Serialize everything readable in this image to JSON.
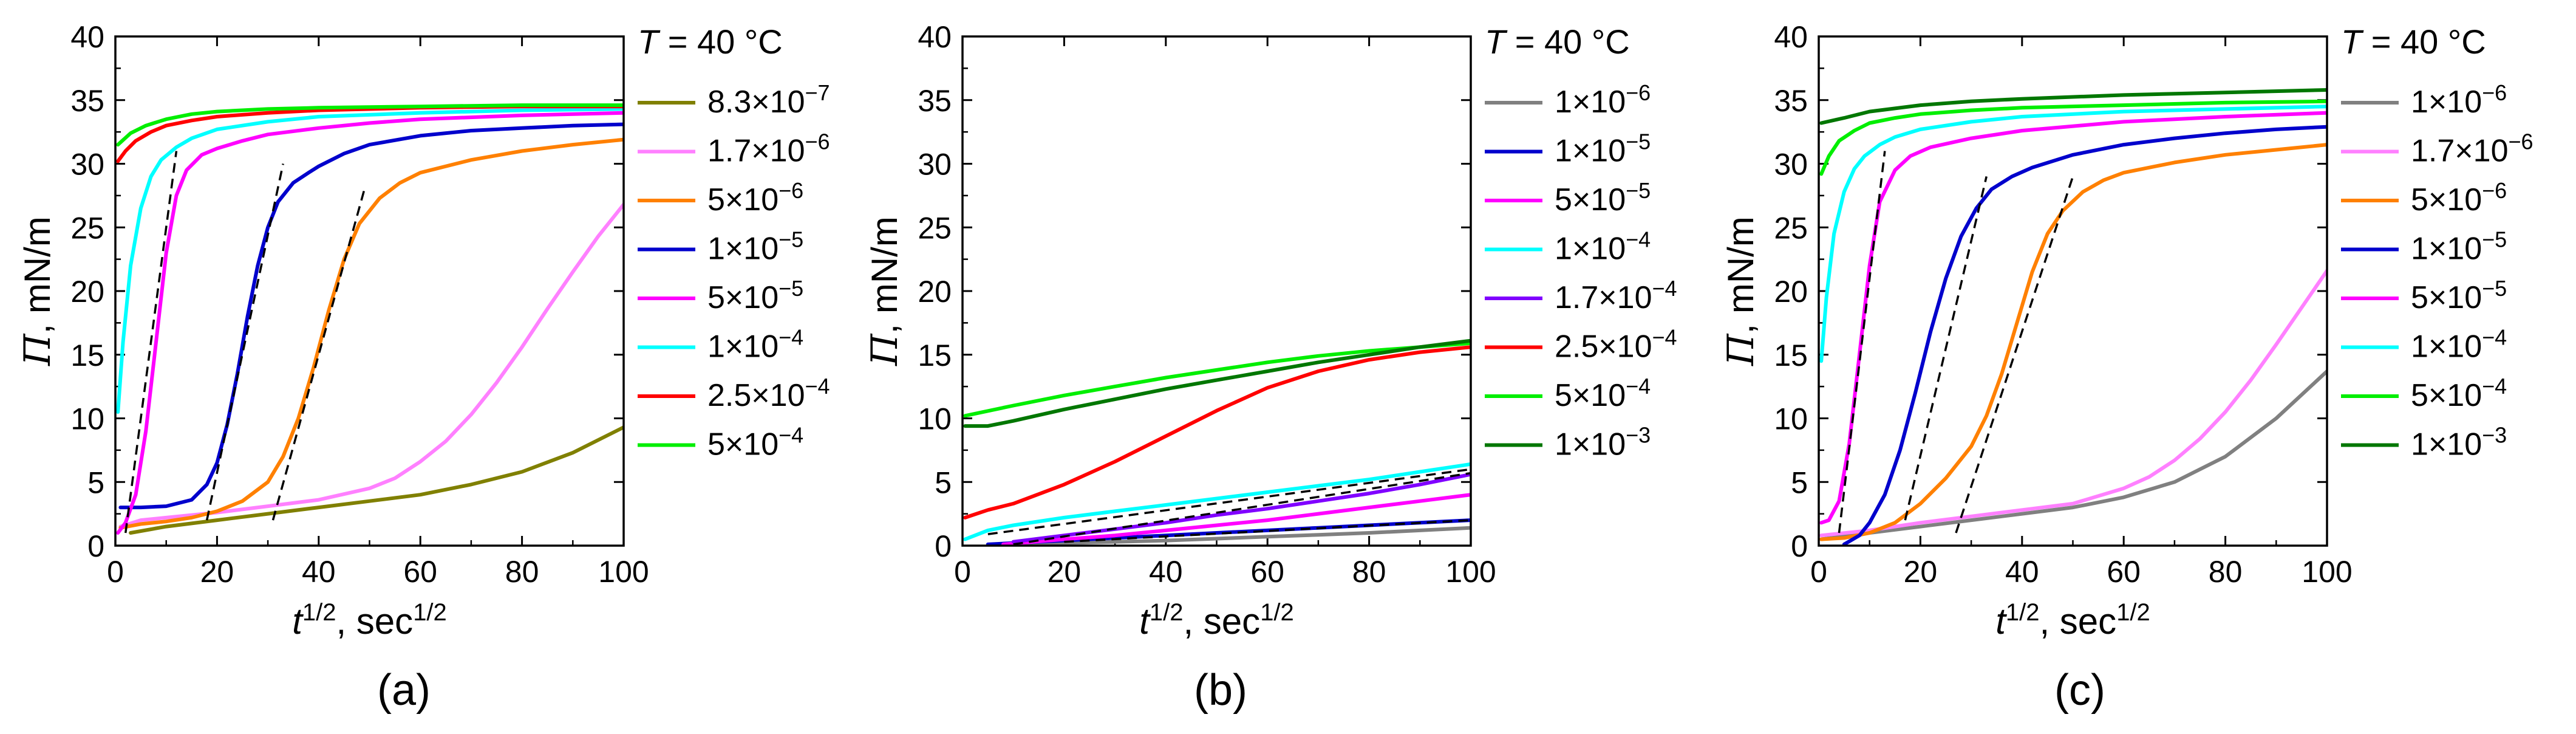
{
  "chart_data": [
    {
      "type": "line",
      "panel_label": "(a)",
      "title": "",
      "xlabel": {
        "var": "t",
        "exp": "1/2",
        "sep": ", ",
        "unit": "sec",
        "unit_exp": "1/2"
      },
      "ylabel": {
        "var": "Π",
        "unit": ", mN/m"
      },
      "xlim": [
        0,
        100
      ],
      "ylim": [
        0,
        40
      ],
      "xticks": [
        0,
        20,
        40,
        60,
        80,
        100
      ],
      "yticks": [
        0,
        5,
        10,
        15,
        20,
        25,
        30,
        35,
        40
      ],
      "legend_title": {
        "var": "T",
        "rest": " = 40 °C"
      },
      "series": [
        {
          "name": "8.3×10",
          "exp": "−7",
          "color": "#808000",
          "x": [
            3,
            10,
            20,
            30,
            40,
            50,
            60,
            70,
            80,
            90,
            100
          ],
          "y": [
            1.0,
            1.5,
            2.0,
            2.5,
            3.0,
            3.5,
            4.0,
            4.8,
            5.8,
            7.3,
            9.3
          ]
        },
        {
          "name": "1.7×10",
          "exp": "−6",
          "color": "#FF80FF",
          "x": [
            1,
            5,
            10,
            20,
            30,
            40,
            50,
            55,
            60,
            65,
            70,
            75,
            80,
            85,
            90,
            95,
            100
          ],
          "y": [
            1.5,
            2.0,
            2.2,
            2.6,
            3.1,
            3.6,
            4.5,
            5.3,
            6.6,
            8.2,
            10.3,
            12.8,
            15.6,
            18.6,
            21.5,
            24.3,
            26.8
          ]
        },
        {
          "name": "5×10",
          "exp": "−6",
          "color": "#FF8000",
          "x": [
            1,
            5,
            10,
            15,
            20,
            25,
            30,
            33,
            36,
            39,
            42,
            45,
            48,
            52,
            56,
            60,
            70,
            80,
            90,
            100
          ],
          "y": [
            1.4,
            1.7,
            1.9,
            2.2,
            2.7,
            3.5,
            5.0,
            7.0,
            10.0,
            14.0,
            18.5,
            22.5,
            25.3,
            27.3,
            28.5,
            29.3,
            30.3,
            31.0,
            31.5,
            31.9
          ]
        },
        {
          "name": "1×10",
          "exp": "−5",
          "color": "#0000CC",
          "x": [
            1,
            5,
            10,
            15,
            18,
            20,
            22,
            24,
            26,
            28,
            30,
            32,
            35,
            38,
            40,
            45,
            50,
            60,
            70,
            80,
            90,
            100
          ],
          "y": [
            3.0,
            3.0,
            3.1,
            3.6,
            4.8,
            6.5,
            9.5,
            13.5,
            18.0,
            22.0,
            25.0,
            27.0,
            28.5,
            29.3,
            29.8,
            30.8,
            31.5,
            32.2,
            32.6,
            32.8,
            33.0,
            33.1
          ]
        },
        {
          "name": "5×10",
          "exp": "−5",
          "color": "#FF00FF",
          "x": [
            0.5,
            2,
            4,
            6,
            8,
            10,
            12,
            14,
            17,
            20,
            25,
            30,
            40,
            50,
            60,
            80,
            100
          ],
          "y": [
            1.0,
            1.8,
            4.0,
            9.0,
            16.0,
            23.0,
            27.5,
            29.5,
            30.7,
            31.2,
            31.8,
            32.3,
            32.8,
            33.2,
            33.5,
            33.8,
            34.0
          ]
        },
        {
          "name": "1×10",
          "exp": "−4",
          "color": "#00FFFF",
          "x": [
            0.5,
            1.5,
            3,
            5,
            7,
            9,
            12,
            15,
            20,
            30,
            40,
            60,
            80,
            100
          ],
          "y": [
            10.5,
            16.0,
            22.0,
            26.5,
            29.0,
            30.3,
            31.3,
            32.0,
            32.7,
            33.3,
            33.7,
            34.0,
            34.2,
            34.3
          ]
        },
        {
          "name": "2.5×10",
          "exp": "−4",
          "color": "#FF0000",
          "x": [
            0.5,
            2,
            4,
            7,
            10,
            15,
            20,
            30,
            40,
            60,
            80,
            100
          ],
          "y": [
            30.2,
            31.0,
            31.8,
            32.5,
            33.0,
            33.4,
            33.7,
            34.0,
            34.2,
            34.4,
            34.5,
            34.5
          ]
        },
        {
          "name": "5×10",
          "exp": "−4",
          "color": "#00EE00",
          "x": [
            0.5,
            3,
            6,
            10,
            15,
            20,
            30,
            40,
            60,
            80,
            100
          ],
          "y": [
            31.5,
            32.4,
            33.0,
            33.5,
            33.9,
            34.1,
            34.3,
            34.4,
            34.5,
            34.6,
            34.6
          ]
        }
      ],
      "fits": [
        {
          "x": [
            2,
            12
          ],
          "y": [
            1,
            31
          ]
        },
        {
          "x": [
            18,
            33
          ],
          "y": [
            2,
            30
          ]
        },
        {
          "x": [
            31,
            49
          ],
          "y": [
            2,
            28
          ]
        }
      ]
    },
    {
      "type": "line",
      "panel_label": "(b)",
      "title": "",
      "xlabel": {
        "var": "t",
        "exp": "1/2",
        "sep": ", ",
        "unit": "sec",
        "unit_exp": "1/2"
      },
      "ylabel": {
        "var": "Π",
        "unit": ", mN/m"
      },
      "xlim": [
        0,
        100
      ],
      "ylim": [
        0,
        40
      ],
      "xticks": [
        0,
        20,
        40,
        60,
        80,
        100
      ],
      "yticks": [
        0,
        5,
        10,
        15,
        20,
        25,
        30,
        35,
        40
      ],
      "legend_title": {
        "var": "T",
        "rest": " = 40 °C"
      },
      "series": [
        {
          "name": "1×10",
          "exp": "−6",
          "color": "#808080",
          "x": [
            10,
            20,
            30,
            40,
            50,
            60,
            70,
            80,
            90,
            100
          ],
          "y": [
            0.1,
            0.2,
            0.3,
            0.4,
            0.55,
            0.7,
            0.85,
            1.0,
            1.2,
            1.4
          ]
        },
        {
          "name": "1×10",
          "exp": "−5",
          "color": "#0000CC",
          "x": [
            5,
            10,
            20,
            30,
            40,
            50,
            60,
            70,
            80,
            90,
            100
          ],
          "y": [
            0.1,
            0.2,
            0.4,
            0.6,
            0.8,
            1.0,
            1.2,
            1.4,
            1.6,
            1.8,
            2.0
          ]
        },
        {
          "name": "5×10",
          "exp": "−5",
          "color": "#FF00FF",
          "x": [
            8,
            20,
            30,
            40,
            50,
            60,
            70,
            80,
            90,
            100
          ],
          "y": [
            0.1,
            0.5,
            0.8,
            1.2,
            1.6,
            2.0,
            2.5,
            3.0,
            3.5,
            4.0
          ]
        },
        {
          "name": "1×10",
          "exp": "−4",
          "color": "#00FFFF",
          "x": [
            0.5,
            5,
            10,
            20,
            30,
            40,
            50,
            60,
            70,
            80,
            90,
            100
          ],
          "y": [
            0.5,
            1.2,
            1.6,
            2.2,
            2.7,
            3.2,
            3.7,
            4.2,
            4.7,
            5.2,
            5.8,
            6.4
          ]
        },
        {
          "name": "1.7×10",
          "exp": "−4",
          "color": "#8000FF",
          "x": [
            10,
            20,
            30,
            40,
            50,
            60,
            70,
            80,
            90,
            100
          ],
          "y": [
            0.3,
            0.8,
            1.3,
            1.8,
            2.4,
            2.9,
            3.5,
            4.1,
            4.8,
            5.6
          ]
        },
        {
          "name": "2.5×10",
          "exp": "−4",
          "color": "#FF0000",
          "x": [
            0.5,
            5,
            10,
            20,
            30,
            40,
            50,
            60,
            70,
            80,
            90,
            100
          ],
          "y": [
            2.2,
            2.8,
            3.3,
            4.8,
            6.6,
            8.6,
            10.6,
            12.4,
            13.7,
            14.6,
            15.2,
            15.6
          ]
        },
        {
          "name": "5×10",
          "exp": "−4",
          "color": "#00EE00",
          "x": [
            0.5,
            10,
            20,
            30,
            40,
            50,
            60,
            70,
            80,
            90,
            100
          ],
          "y": [
            10.2,
            11.0,
            11.8,
            12.5,
            13.2,
            13.8,
            14.4,
            14.9,
            15.3,
            15.6,
            15.9
          ]
        },
        {
          "name": "1×10",
          "exp": "−3",
          "color": "#007700",
          "x": [
            0.5,
            5,
            10,
            20,
            30,
            40,
            50,
            60,
            70,
            80,
            90,
            100
          ],
          "y": [
            9.4,
            9.4,
            9.8,
            10.7,
            11.5,
            12.3,
            13.0,
            13.7,
            14.4,
            15.0,
            15.6,
            16.1
          ]
        }
      ],
      "fits": [
        {
          "x": [
            5,
            100
          ],
          "y": [
            0.9,
            6.0
          ]
        },
        {
          "x": [
            10,
            100
          ],
          "y": [
            0.1,
            5.7
          ]
        },
        {
          "x": [
            20,
            100
          ],
          "y": [
            0.3,
            2.0
          ]
        }
      ]
    },
    {
      "type": "line",
      "panel_label": "(c)",
      "title": "",
      "xlabel": {
        "var": "t",
        "exp": "1/2",
        "sep": ", ",
        "unit": "sec",
        "unit_exp": "1/2"
      },
      "ylabel": {
        "var": "Π",
        "unit": ", mN/m"
      },
      "xlim": [
        0,
        100
      ],
      "ylim": [
        0,
        40
      ],
      "xticks": [
        0,
        20,
        40,
        60,
        80,
        100
      ],
      "yticks": [
        0,
        5,
        10,
        15,
        20,
        25,
        30,
        35,
        40
      ],
      "legend_title": {
        "var": "T",
        "rest": " = 40 °C"
      },
      "series": [
        {
          "name": "1×10",
          "exp": "−6",
          "color": "#808080",
          "x": [
            0.5,
            10,
            20,
            30,
            40,
            50,
            60,
            70,
            80,
            90,
            100
          ],
          "y": [
            0.5,
            1.0,
            1.5,
            2.0,
            2.5,
            3.0,
            3.8,
            5.0,
            7.0,
            10.0,
            13.7
          ]
        },
        {
          "name": "1.7×10",
          "exp": "−6",
          "color": "#FF80FF",
          "x": [
            0.5,
            10,
            20,
            30,
            40,
            50,
            60,
            65,
            70,
            75,
            80,
            85,
            90,
            95,
            100
          ],
          "y": [
            0.8,
            1.2,
            1.8,
            2.3,
            2.8,
            3.3,
            4.5,
            5.4,
            6.7,
            8.4,
            10.5,
            13.0,
            15.8,
            18.7,
            21.6
          ]
        },
        {
          "name": "5×10",
          "exp": "−6",
          "color": "#FF8000",
          "x": [
            0.5,
            5,
            10,
            15,
            20,
            25,
            30,
            33,
            36,
            39,
            42,
            45,
            48,
            52,
            56,
            60,
            70,
            80,
            90,
            100
          ],
          "y": [
            0.5,
            0.6,
            1.0,
            1.8,
            3.3,
            5.3,
            7.8,
            10.2,
            13.5,
            17.5,
            21.5,
            24.5,
            26.3,
            27.8,
            28.7,
            29.3,
            30.1,
            30.7,
            31.1,
            31.5
          ]
        },
        {
          "name": "1×10",
          "exp": "−5",
          "color": "#0000CC",
          "x": [
            5,
            8,
            10,
            13,
            16,
            19,
            22,
            25,
            28,
            31,
            34,
            38,
            42,
            50,
            60,
            70,
            80,
            90,
            100
          ],
          "y": [
            0.1,
            0.8,
            1.8,
            4.0,
            7.5,
            12.0,
            16.8,
            21.0,
            24.3,
            26.5,
            28.0,
            29.0,
            29.7,
            30.7,
            31.5,
            32.0,
            32.4,
            32.7,
            32.9
          ]
        },
        {
          "name": "5×10",
          "exp": "−5",
          "color": "#FF00FF",
          "x": [
            0.5,
            2,
            4,
            6,
            8,
            10,
            12,
            15,
            18,
            22,
            30,
            40,
            60,
            80,
            100
          ],
          "y": [
            1.8,
            2.0,
            3.5,
            8.0,
            15.0,
            22.0,
            27.0,
            29.5,
            30.6,
            31.3,
            32.0,
            32.6,
            33.3,
            33.7,
            34.0
          ]
        },
        {
          "name": "1×10",
          "exp": "−4",
          "color": "#00FFFF",
          "x": [
            0.5,
            1.5,
            3,
            5,
            7,
            9,
            12,
            15,
            20,
            30,
            40,
            60,
            80,
            100
          ],
          "y": [
            14.5,
            19.5,
            24.5,
            27.8,
            29.6,
            30.6,
            31.5,
            32.1,
            32.7,
            33.3,
            33.7,
            34.1,
            34.3,
            34.5
          ]
        },
        {
          "name": "5×10",
          "exp": "−4",
          "color": "#00EE00",
          "x": [
            0.5,
            2,
            4,
            7,
            10,
            15,
            20,
            30,
            40,
            60,
            80,
            100
          ],
          "y": [
            29.2,
            30.6,
            31.8,
            32.6,
            33.2,
            33.6,
            33.9,
            34.2,
            34.4,
            34.6,
            34.8,
            34.9
          ]
        },
        {
          "name": "1×10",
          "exp": "−3",
          "color": "#007700",
          "x": [
            0.5,
            5,
            10,
            20,
            30,
            40,
            60,
            80,
            100
          ],
          "y": [
            33.2,
            33.6,
            34.1,
            34.6,
            34.9,
            35.1,
            35.4,
            35.6,
            35.8
          ]
        }
      ],
      "fits": [
        {
          "x": [
            4,
            13
          ],
          "y": [
            1,
            31
          ]
        },
        {
          "x": [
            17,
            33
          ],
          "y": [
            2,
            29
          ]
        },
        {
          "x": [
            27,
            50
          ],
          "y": [
            1,
            29
          ]
        }
      ]
    }
  ]
}
